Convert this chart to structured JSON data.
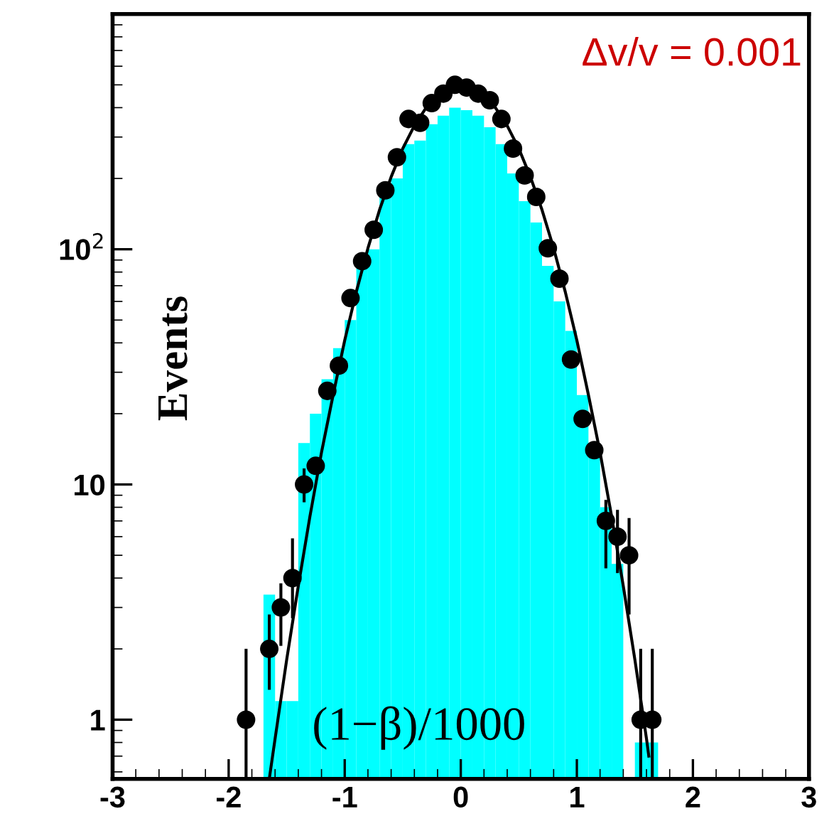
{
  "chart_data": {
    "type": "histogram",
    "xlabel": "(1−β)/1000",
    "ylabel": "Events",
    "annotations": [
      "Δv/v = 0.001"
    ],
    "xlim": [
      -3,
      3
    ],
    "xticks": [
      -3,
      -2,
      -1,
      0,
      1,
      2,
      3
    ],
    "ylim": [
      0.56,
      1000
    ],
    "yticks": [
      1,
      10,
      {
        "value": 100,
        "label": "10$^{2}$"
      }
    ],
    "log": "y",
    "grid": false,
    "legend": false,
    "series": [
      {
        "color": "#00ffff",
        "bins": [
          -1.7,
          -1.6,
          -1.5,
          -1.4,
          -1.3,
          -1.2,
          -1.1,
          -1.0,
          -0.9,
          -0.8,
          -0.7,
          -0.6,
          -0.5,
          -0.4,
          -0.3,
          -0.2,
          -0.1,
          0.0,
          0.1,
          0.2,
          0.3,
          0.4,
          0.5,
          0.6,
          0.7,
          0.8,
          0.9,
          1.0,
          1.1,
          1.2,
          1.3,
          1.4,
          1.5,
          1.6,
          1.7
        ],
        "values": [
          3.4,
          1.2,
          1.2,
          15,
          20,
          28,
          38,
          50,
          85,
          100,
          170,
          200,
          280,
          290,
          340,
          370,
          400,
          390,
          370,
          330,
          280,
          210,
          160,
          130,
          85,
          60,
          45,
          24,
          15,
          8,
          4.6,
          null,
          0.8,
          0.8
        ]
      },
      {
        "type": "scatter",
        "color": "#000000",
        "marker": "circle",
        "x": [
          -1.85,
          -1.65,
          -1.55,
          -1.45,
          -1.35,
          -1.25,
          -1.15,
          -1.05,
          -0.95,
          -0.85,
          -0.75,
          -0.65,
          -0.55,
          -0.45,
          -0.35,
          -0.25,
          -0.15,
          -0.05,
          0.05,
          0.15,
          0.25,
          0.35,
          0.45,
          0.55,
          0.65,
          0.75,
          0.85,
          0.95,
          1.05,
          1.15,
          1.25,
          1.35,
          1.45,
          1.55,
          1.65
        ],
        "values": [
          1,
          2,
          3,
          4,
          10,
          12,
          25,
          32,
          62,
          89,
          121,
          178,
          246,
          358,
          345,
          418,
          459,
          500,
          487,
          459,
          430,
          358,
          268,
          206,
          167,
          101,
          75,
          34,
          19,
          14,
          7,
          6,
          5,
          1,
          1
        ],
        "errors": [
          [
            0.56,
            2.0
          ],
          [
            1.34,
            2.8
          ],
          [
            2.06,
            3.8
          ],
          [
            2.7,
            5.9
          ],
          [
            8.4,
            11.7
          ],
          null,
          null,
          null,
          null,
          null,
          null,
          null,
          null,
          null,
          null,
          null,
          null,
          null,
          null,
          null,
          null,
          null,
          null,
          null,
          null,
          null,
          null,
          null,
          null,
          null,
          [
            4.4,
            8.6
          ],
          [
            4.2,
            7.8
          ],
          [
            2.8,
            7.2
          ],
          [
            0.56,
            2.0
          ],
          [
            0.56,
            2.0
          ]
        ]
      },
      {
        "type": "line",
        "color": "#000000",
        "x": [
          -1.65,
          -1.6,
          -1.5,
          -1.4,
          -1.3,
          -1.2,
          -1.1,
          -1.0,
          -0.9,
          -0.8,
          -0.7,
          -0.6,
          -0.5,
          -0.4,
          -0.3,
          -0.2,
          -0.1,
          0.0,
          0.1,
          0.2,
          0.3,
          0.4,
          0.5,
          0.6,
          0.7,
          0.8,
          0.9,
          1.0,
          1.1,
          1.2,
          1.3,
          1.4,
          1.5,
          1.6,
          1.62
        ],
        "values": [
          0.56,
          0.83,
          1.8,
          3.7,
          7.3,
          13.7,
          24,
          41,
          66,
          101,
          147,
          203,
          268,
          335,
          399,
          452,
          488,
          500,
          488,
          452,
          399,
          335,
          268,
          203,
          147,
          101,
          66,
          41,
          24,
          13.7,
          7.3,
          3.7,
          1.8,
          0.83,
          0.7
        ]
      }
    ]
  }
}
